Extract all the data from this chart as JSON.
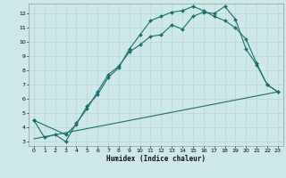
{
  "title": "",
  "xlabel": "Humidex (Indice chaleur)",
  "bg_color": "#cde8e8",
  "grid_color": "#b8d4d4",
  "line_color": "#1a6e6e",
  "xlim": [
    -0.5,
    23.5
  ],
  "ylim": [
    2.7,
    12.7
  ],
  "xticks": [
    0,
    1,
    2,
    3,
    4,
    5,
    6,
    7,
    8,
    9,
    10,
    11,
    12,
    13,
    14,
    15,
    16,
    17,
    18,
    19,
    20,
    21,
    22,
    23
  ],
  "yticks": [
    3,
    4,
    5,
    6,
    7,
    8,
    9,
    10,
    11,
    12
  ],
  "line1_x": [
    0,
    1,
    2,
    3,
    4,
    5,
    6,
    7,
    8,
    9,
    10,
    11,
    12,
    13,
    14,
    15,
    16,
    17,
    18,
    19,
    20,
    21,
    22,
    23
  ],
  "line1_y": [
    4.5,
    3.3,
    3.5,
    3.0,
    4.3,
    5.3,
    6.5,
    7.7,
    8.3,
    9.3,
    9.8,
    10.4,
    10.5,
    11.2,
    10.9,
    11.8,
    12.1,
    12.0,
    12.5,
    11.6,
    9.5,
    8.4,
    7.0,
    6.5
  ],
  "line2_x": [
    0,
    3,
    4,
    5,
    6,
    7,
    8,
    9,
    10,
    11,
    12,
    13,
    14,
    15,
    16,
    17,
    18,
    19,
    20,
    21,
    22,
    23
  ],
  "line2_y": [
    4.5,
    3.5,
    4.2,
    5.5,
    6.3,
    7.5,
    8.2,
    9.5,
    10.5,
    11.5,
    11.8,
    12.1,
    12.2,
    12.5,
    12.2,
    11.8,
    11.5,
    11.0,
    10.2,
    8.5,
    7.0,
    6.5
  ],
  "line3_x": [
    0,
    23
  ],
  "line3_y": [
    3.2,
    6.5
  ],
  "tick_fontsize": 4.5,
  "xlabel_fontsize": 5.5
}
